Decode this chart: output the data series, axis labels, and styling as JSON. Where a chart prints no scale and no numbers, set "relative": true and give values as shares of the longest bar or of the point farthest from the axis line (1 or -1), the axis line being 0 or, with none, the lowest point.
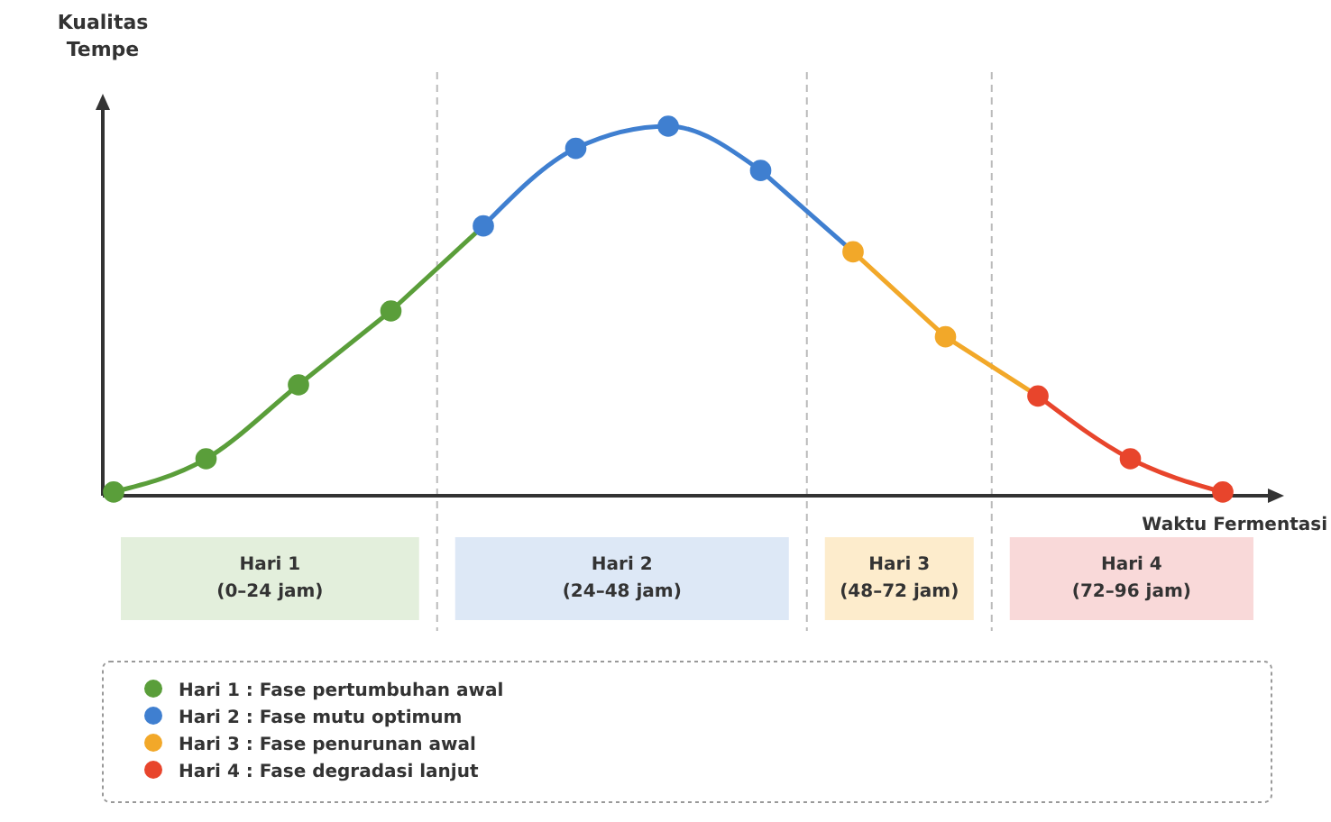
{
  "chart_data": {
    "type": "line",
    "relative": true,
    "xlabel": "Waktu Fermentasi",
    "ylabel": "Kualitas\nTempe",
    "legend": "bottom",
    "marker": "circle",
    "line_style": "solid",
    "categories": [
      null,
      null,
      null,
      null,
      null,
      null,
      null,
      null,
      null,
      null,
      null,
      null,
      null
    ],
    "series": [
      {
        "name": "Hari 1 : Fase pertumbuhan awal",
        "color": "#5a9e3a",
        "values": [
          0.01,
          0.1,
          0.3,
          0.5,
          null,
          null,
          null,
          null,
          null,
          null,
          null,
          null,
          null
        ]
      },
      {
        "name": "Hari 2 : Fase mutu optimum",
        "color": "#3f7fd0",
        "values": [
          null,
          null,
          null,
          null,
          0.73,
          0.94,
          1,
          0.88,
          null,
          null,
          null,
          null,
          null
        ]
      },
      {
        "name": "Hari 3 : Fase penurunan awal",
        "color": "#f2a829",
        "values": [
          null,
          null,
          null,
          null,
          null,
          null,
          null,
          null,
          0.66,
          0.43,
          null,
          null,
          null
        ]
      },
      {
        "name": "Hari 4 : Fase degradasi lanjut",
        "color": "#e8452c",
        "values": [
          null,
          null,
          null,
          null,
          null,
          null,
          null,
          null,
          null,
          null,
          0.27,
          0.1,
          0.01
        ]
      }
    ],
    "annotations": [
      "Hari 1\n(0–24 jam)",
      "Hari 2\n(24–48 jam)",
      "Hari 3\n(48–72 jam)",
      "Hari 4\n(72–96 jam)"
    ]
  }
}
